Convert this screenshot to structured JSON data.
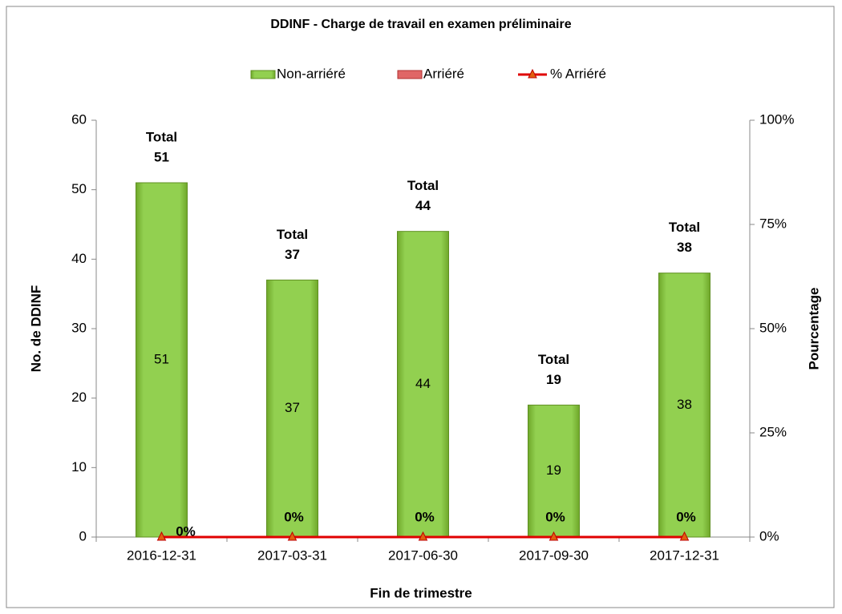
{
  "chart_data": {
    "type": "bar",
    "stacked": true,
    "title": "DDINF - Charge de travail en examen préliminaire",
    "xlabel": "Fin de trimestre",
    "ylabel": "No. de DDINF",
    "y2label": "Pourcentage",
    "categories": [
      "2016-12-31",
      "2017-03-31",
      "2017-06-30",
      "2017-09-30",
      "2017-12-31"
    ],
    "series": [
      {
        "name": "Non-arriéré",
        "type": "bar",
        "color": "#92d050",
        "values": [
          51,
          37,
          44,
          19,
          38
        ]
      },
      {
        "name": "Arriéré",
        "type": "bar",
        "color": "#e06666",
        "values": [
          0,
          0,
          0,
          0,
          0
        ]
      },
      {
        "name": "% Arriéré",
        "type": "line",
        "axis": "y2",
        "color": "#e00000",
        "values": [
          0,
          0,
          0,
          0,
          0
        ],
        "value_labels": [
          "0%",
          "0%",
          "0%",
          "0%",
          "0%"
        ]
      }
    ],
    "totals": {
      "label": "Total",
      "values": [
        51,
        37,
        44,
        19,
        38
      ]
    },
    "ylim": [
      0,
      60
    ],
    "yticks": [
      0,
      10,
      20,
      30,
      40,
      50,
      60
    ],
    "y2lim": [
      0,
      100
    ],
    "y2ticks": [
      {
        "value": 0,
        "label": "0%"
      },
      {
        "value": 25,
        "label": "25%"
      },
      {
        "value": 50,
        "label": "50%"
      },
      {
        "value": 75,
        "label": "75%"
      },
      {
        "value": 100,
        "label": "100%"
      }
    ],
    "grid": false,
    "legend": "top"
  }
}
